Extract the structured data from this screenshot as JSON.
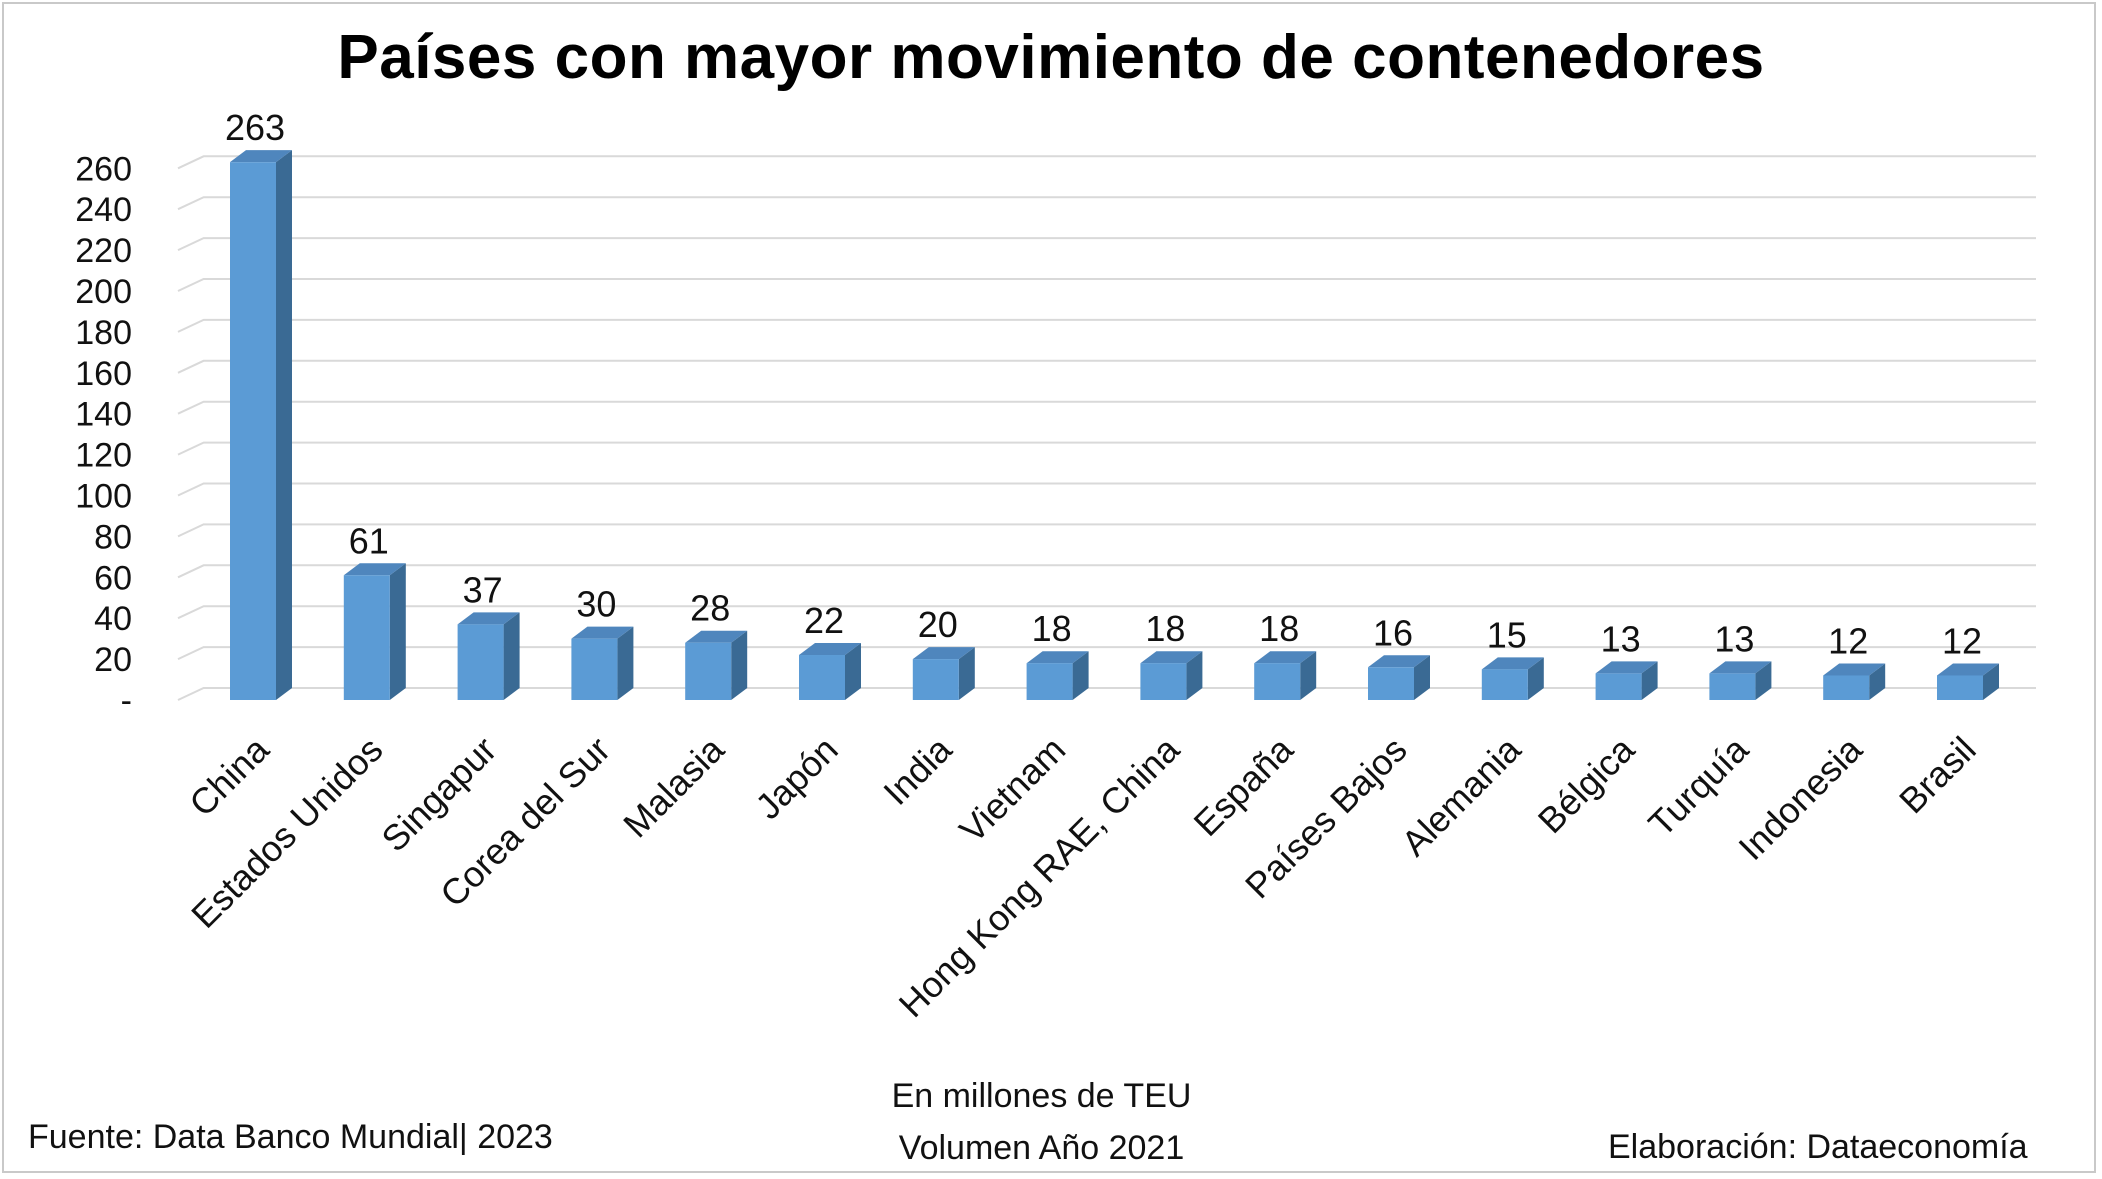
{
  "title": "Países con mayor movimiento de contenedores",
  "axis_caption_line1": "En millones de TEU",
  "axis_caption_line2": "Volumen Año 2021",
  "source": "Fuente: Data Banco Mundial| 2023",
  "credit": "Elaboración: Dataeconomía",
  "chart_data": {
    "type": "bar",
    "title": "Países con mayor movimiento de contenedores",
    "xlabel": "En millones de TEU Volumen Año 2021",
    "ylabel": "",
    "ylim": [
      0,
      270
    ],
    "yticks": [
      0,
      20,
      40,
      60,
      80,
      100,
      120,
      140,
      160,
      180,
      200,
      220,
      240,
      260
    ],
    "ytick_labels": [
      "-",
      "20",
      "40",
      "60",
      "80",
      "100",
      "120",
      "140",
      "160",
      "180",
      "200",
      "220",
      "240",
      "260"
    ],
    "grid": true,
    "style": "3d-column",
    "bar_color": "#5b9bd5",
    "categories": [
      "China",
      "Estados Unidos",
      "Singapur",
      "Corea del Sur",
      "Malasia",
      "Japón",
      "India",
      "Vietnam",
      "Hong Kong RAE, China",
      "España",
      "Países Bajos",
      "Alemania",
      "Bélgica",
      "Turquía",
      "Indonesia",
      "Brasil"
    ],
    "values": [
      263,
      61,
      37,
      30,
      28,
      22,
      20,
      18,
      18,
      18,
      16,
      15,
      13,
      13,
      12,
      12
    ]
  }
}
